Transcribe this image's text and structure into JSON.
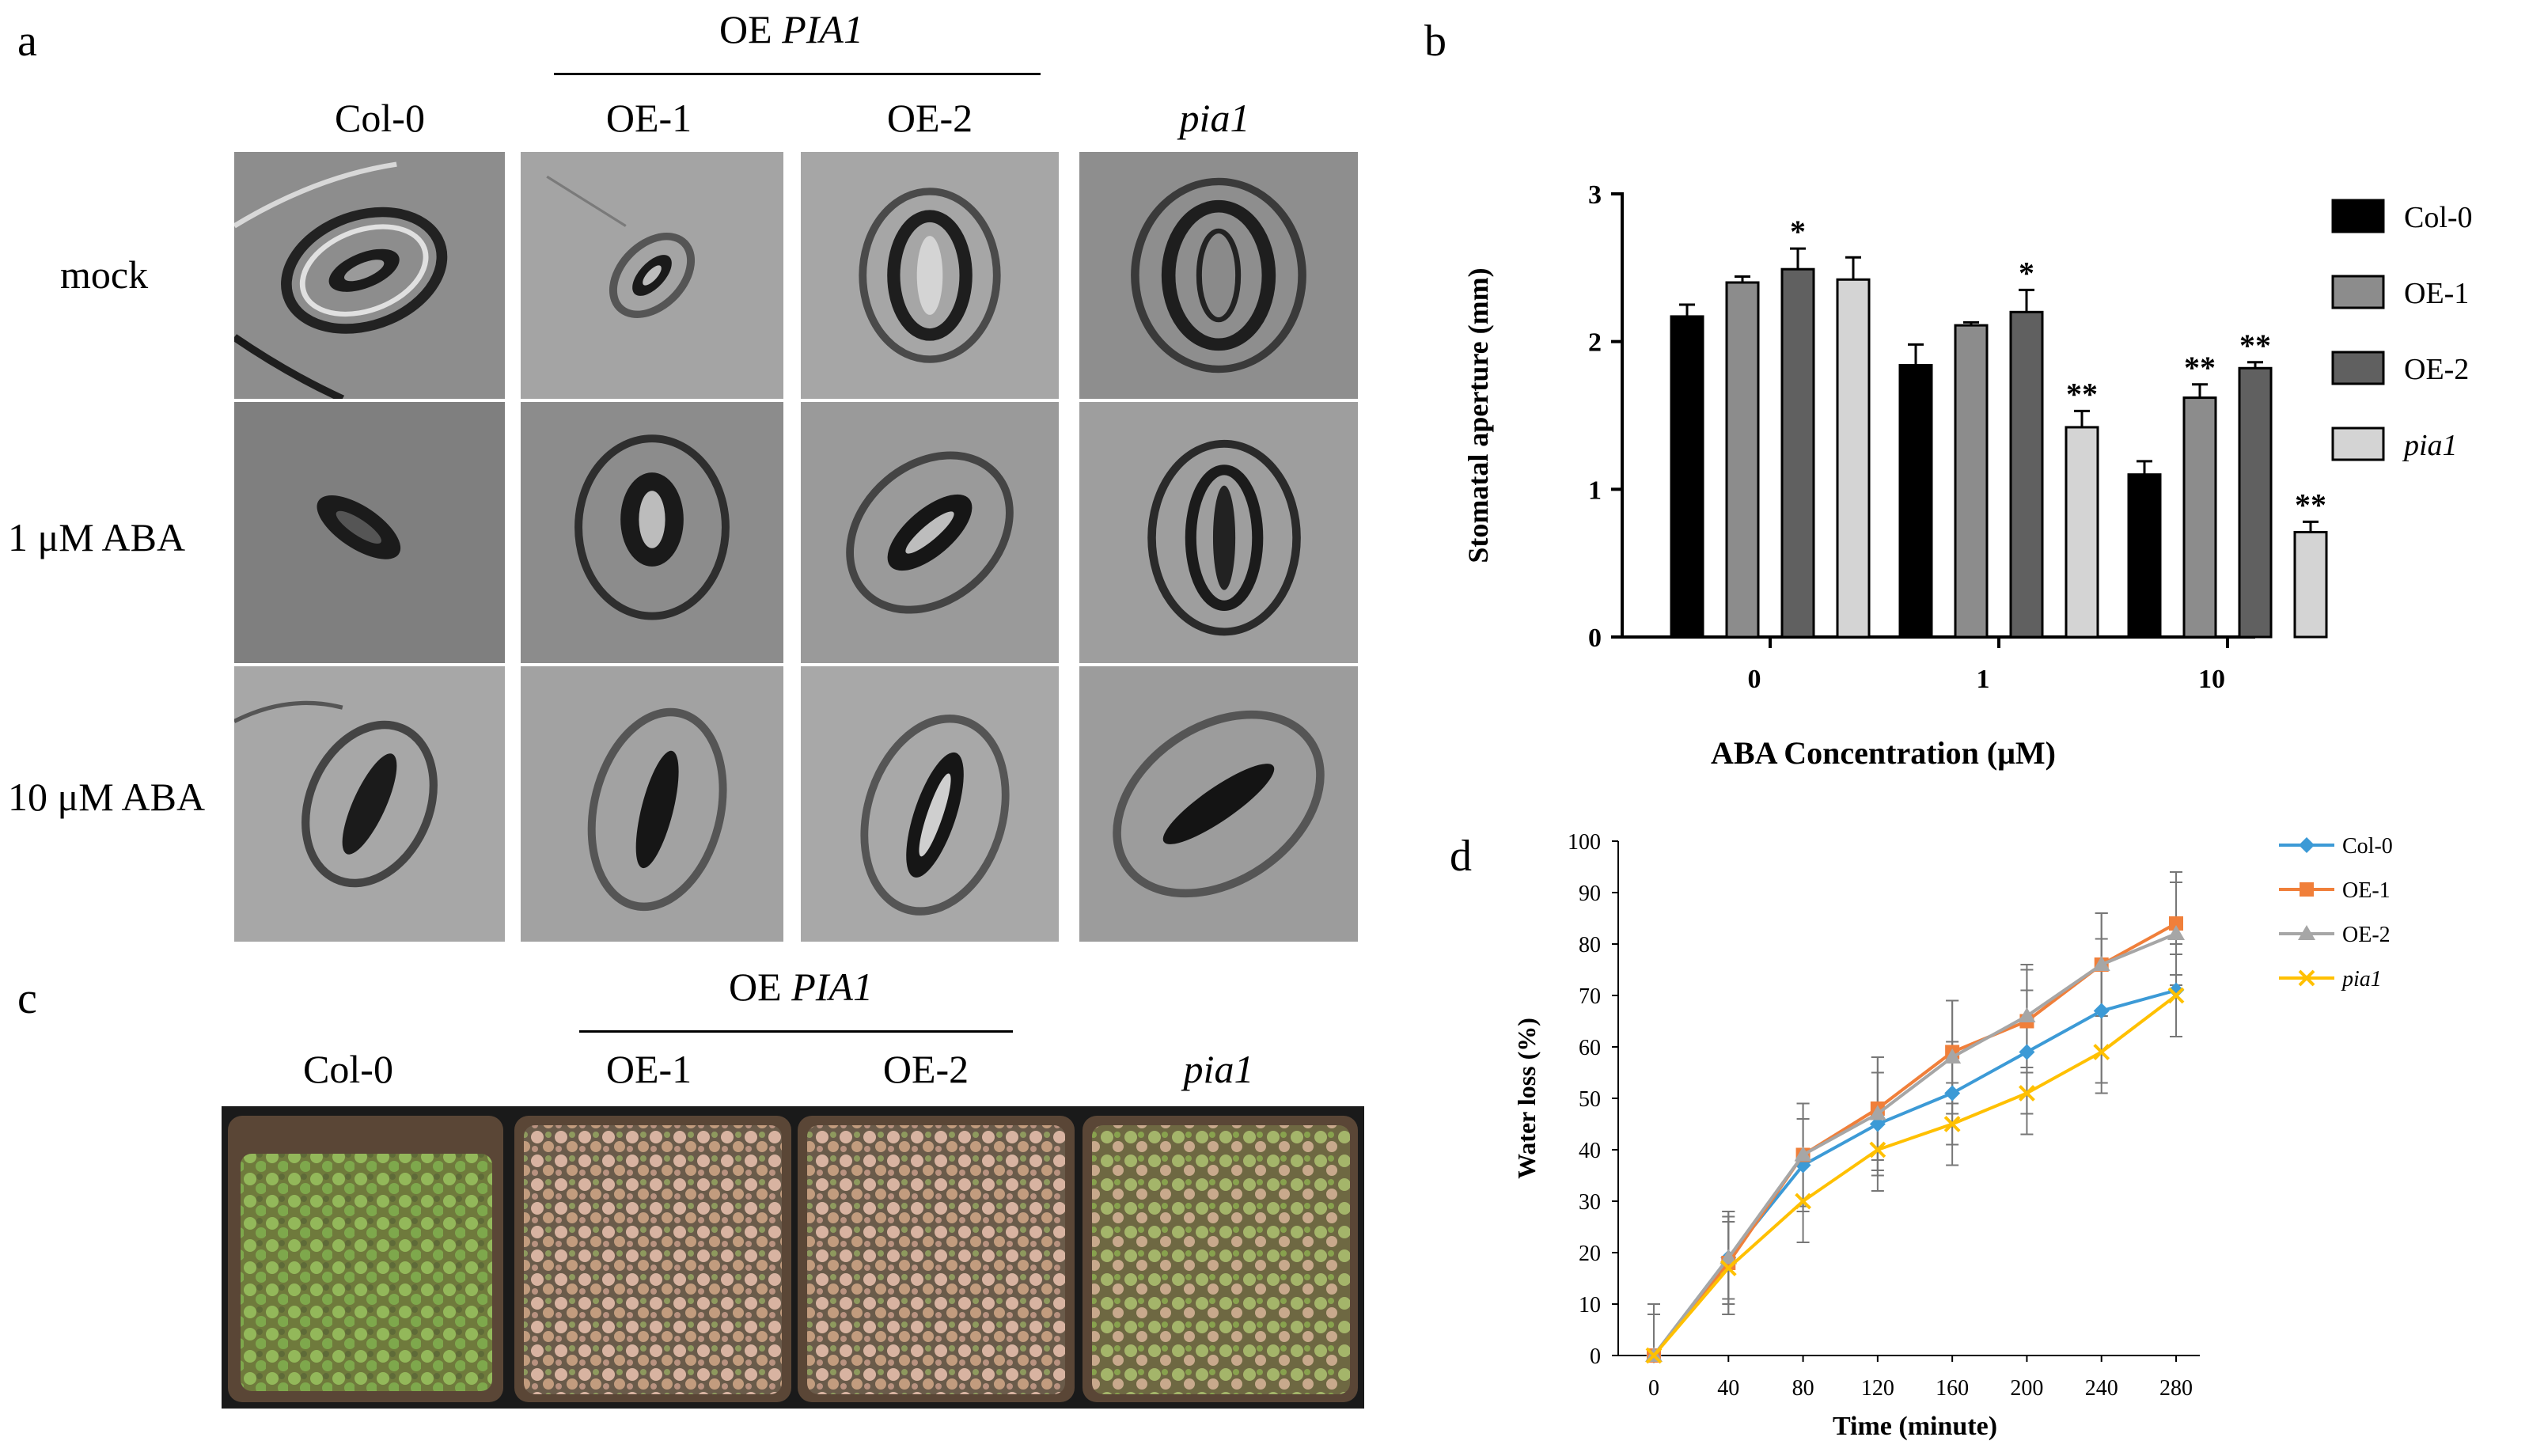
{
  "panels": {
    "a": "a",
    "b": "b",
    "c": "c",
    "d": "d"
  },
  "panel_a": {
    "group_label": {
      "prefix": "OE ",
      "gene": "PIA1"
    },
    "columns": [
      "Col-0",
      "OE-1",
      "OE-2",
      "pia1"
    ],
    "rows": [
      "mock",
      "1 μM ABA",
      "10 μM ABA"
    ]
  },
  "panel_c": {
    "group_label": {
      "prefix": "OE ",
      "gene": "PIA1"
    },
    "columns": [
      "Col-0",
      "OE-1",
      "OE-2",
      "pia1"
    ]
  },
  "chart_data": [
    {
      "type": "bar",
      "panel": "b",
      "xlabel": "ABA Concentration (μM)",
      "ylabel": "Stomatal aperture (mm)",
      "categories": [
        "0",
        "1",
        "10"
      ],
      "ylim": [
        0,
        3
      ],
      "yticks": [
        0,
        1,
        2,
        3
      ],
      "legend_position": "right",
      "series": [
        {
          "name": "Col-0",
          "color": "#000000",
          "values": [
            2.17,
            1.84,
            1.1
          ],
          "errors": [
            0.08,
            0.14,
            0.09
          ],
          "sig": [
            "",
            "",
            ""
          ]
        },
        {
          "name": "OE-1",
          "color": "#8c8c8c",
          "values": [
            2.4,
            2.11,
            1.62
          ],
          "errors": [
            0.04,
            0.02,
            0.09
          ],
          "sig": [
            "",
            "",
            "**"
          ]
        },
        {
          "name": "OE-2",
          "color": "#606060",
          "values": [
            2.49,
            2.2,
            1.82
          ],
          "errors": [
            0.14,
            0.15,
            0.04
          ],
          "sig": [
            "*",
            "*",
            "**"
          ]
        },
        {
          "name": "pia1",
          "color": "#d4d4d4",
          "values": [
            2.42,
            1.42,
            0.71
          ],
          "errors": [
            0.15,
            0.11,
            0.07
          ],
          "sig": [
            "",
            "**",
            "**"
          ]
        }
      ]
    },
    {
      "type": "line",
      "panel": "d",
      "xlabel": "Time (minute)",
      "ylabel": "Water loss (%)",
      "x": [
        0,
        40,
        80,
        120,
        160,
        200,
        240,
        280
      ],
      "ylim": [
        0,
        100
      ],
      "yticks": [
        0,
        10,
        20,
        30,
        40,
        50,
        60,
        70,
        80,
        90,
        100
      ],
      "legend_position": "top-right",
      "series": [
        {
          "name": "Col-0",
          "color": "#3c9ad6",
          "marker": "diamond",
          "values": [
            0,
            19,
            37,
            45,
            51,
            59,
            67,
            71
          ],
          "errors": [
            10,
            8,
            9,
            10,
            10,
            12,
            14,
            9
          ]
        },
        {
          "name": "OE-1",
          "color": "#f07f3a",
          "marker": "square",
          "values": [
            0,
            18,
            39,
            48,
            59,
            65,
            76,
            84
          ],
          "errors": [
            8,
            10,
            10,
            10,
            10,
            10,
            10,
            10
          ]
        },
        {
          "name": "OE-2",
          "color": "#a6a6a6",
          "marker": "triangle",
          "values": [
            0,
            19,
            39,
            47,
            58,
            66,
            76,
            82
          ],
          "errors": [
            8,
            9,
            10,
            11,
            11,
            10,
            10,
            10
          ]
        },
        {
          "name": "pia1",
          "color": "#ffc000",
          "marker": "x",
          "values": [
            0,
            17,
            30,
            40,
            45,
            51,
            59,
            70
          ],
          "errors": [
            8,
            9,
            8,
            8,
            8,
            8,
            8,
            8
          ]
        }
      ]
    }
  ]
}
